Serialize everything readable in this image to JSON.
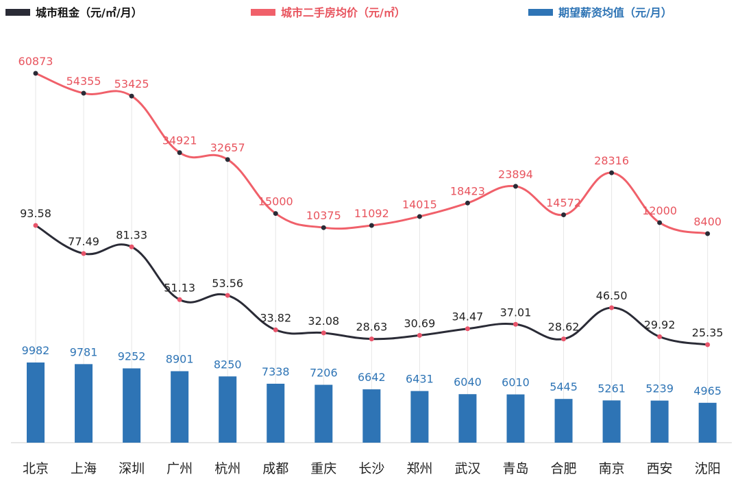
{
  "chart_data": {
    "type": "line+bar",
    "categories": [
      "北京",
      "上海",
      "深圳",
      "广州",
      "杭州",
      "成都",
      "重庆",
      "长沙",
      "郑州",
      "武汉",
      "青岛",
      "合肥",
      "南京",
      "西安",
      "沈阳"
    ],
    "series": [
      {
        "name": "城市租金（元/㎡/月）",
        "type": "line",
        "color": "#2a2b36",
        "marker_color": "#e8546a",
        "values": [
          93.58,
          77.49,
          81.33,
          51.13,
          53.56,
          33.82,
          32.08,
          28.63,
          30.69,
          34.47,
          37.01,
          28.62,
          46.5,
          29.92,
          25.35
        ],
        "labels": [
          "93.58",
          "77.49",
          "81.33",
          "51.13",
          "53.56",
          "33.82",
          "32.08",
          "28.63",
          "30.69",
          "34.47",
          "37.01",
          "28.62",
          "46.50",
          "29.92",
          "25.35"
        ]
      },
      {
        "name": "城市二手房均价（元/㎡）",
        "type": "line",
        "color": "#f0606a",
        "marker_color": "#2a2b36",
        "values": [
          60873,
          54355,
          53425,
          34921,
          32657,
          15000,
          10375,
          11092,
          14015,
          18423,
          23894,
          14572,
          28316,
          12000,
          8400
        ],
        "labels": [
          "60873",
          "54355",
          "53425",
          "34921",
          "32657",
          "15000",
          "10375",
          "11092",
          "14015",
          "18423",
          "23894",
          "14572",
          "28316",
          "12000",
          "8400"
        ]
      },
      {
        "name": "期望薪资均值（元/月）",
        "type": "bar",
        "color": "#2e74b5",
        "values": [
          9982,
          9781,
          9252,
          8901,
          8250,
          7338,
          7206,
          6642,
          6431,
          6040,
          6010,
          5445,
          5261,
          5239,
          4965
        ],
        "labels": [
          "9982",
          "9781",
          "9252",
          "8901",
          "8250",
          "7338",
          "7206",
          "6642",
          "6431",
          "6040",
          "6010",
          "5445",
          "5261",
          "5239",
          "4965"
        ]
      }
    ],
    "legend": "top",
    "grid": false
  }
}
